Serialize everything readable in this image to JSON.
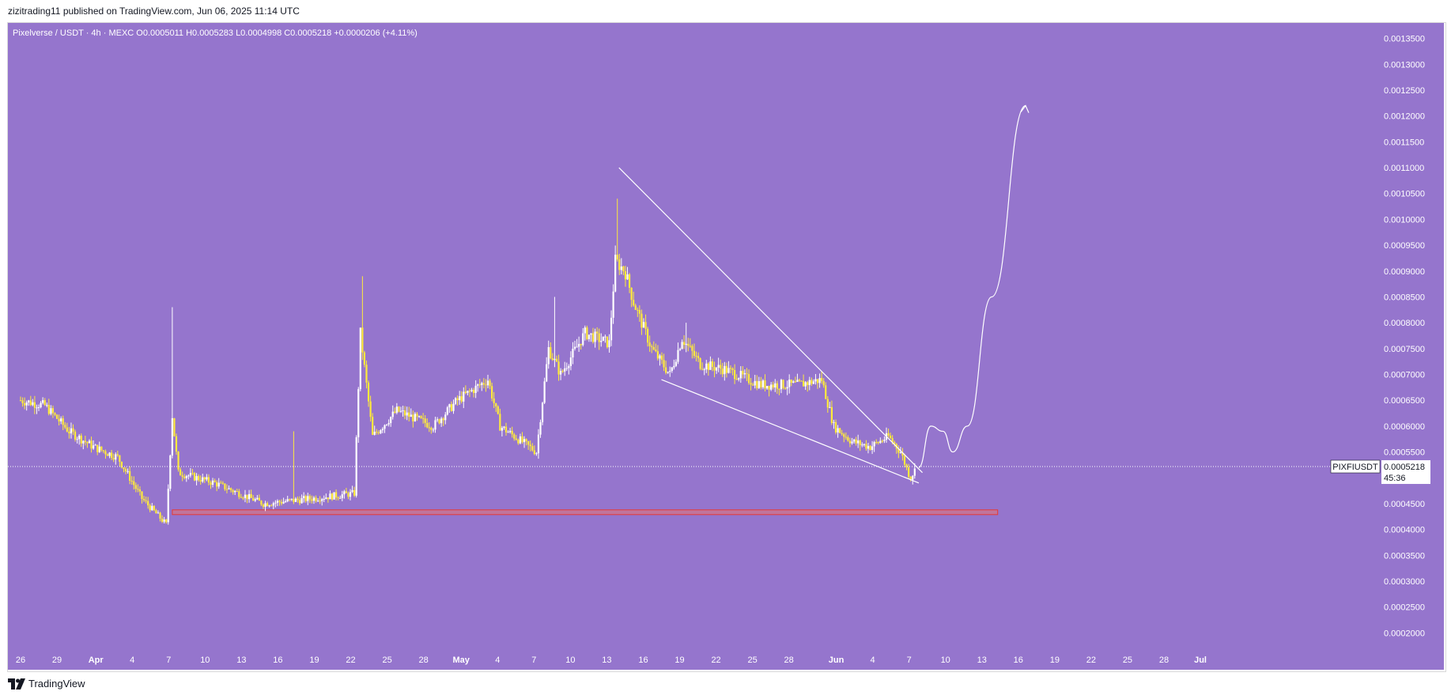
{
  "header": {
    "publish_line": "zizitrading11 published on TradingView.com, Jun 06, 2025 11:14 UTC"
  },
  "footer": {
    "brand": "TradingView"
  },
  "colors": {
    "background": "#9575cd",
    "candle_up": "#ffffff",
    "candle_down": "#ffeb3b",
    "support_zone": "#e57373",
    "annotation": "#ffffff",
    "axis_text": "#ffffff"
  },
  "chart_data": {
    "type": "candlestick",
    "symbol_line": "Pixelverse / USDT · 4h · MEXC  O0.0005011  H0.0005283  L0.0004998  C0.0005218  +0.0000206 (+4.11%)",
    "ticker_label": "PIXFIUSDT",
    "last_price": "0.0005218",
    "countdown": "45:36",
    "ylim": [
      0.00017,
      0.00138
    ],
    "y_ticks": [
      "0.0013500",
      "0.0013000",
      "0.0012500",
      "0.0012000",
      "0.0011500",
      "0.0011000",
      "0.0010500",
      "0.0010000",
      "0.0009500",
      "0.0009000",
      "0.0008500",
      "0.0008000",
      "0.0007500",
      "0.0007000",
      "0.0006500",
      "0.0006000",
      "0.0005500",
      "0.0005000",
      "0.0004500",
      "0.0004000",
      "0.0003500",
      "0.0003000",
      "0.0002500",
      "0.0002000"
    ],
    "x_ticks": [
      "26",
      "29",
      "Apr",
      "4",
      "7",
      "10",
      "13",
      "16",
      "19",
      "22",
      "25",
      "28",
      "May",
      "4",
      "7",
      "10",
      "13",
      "16",
      "19",
      "22",
      "25",
      "28",
      "Jun",
      "4",
      "7",
      "10",
      "13",
      "16",
      "19",
      "22",
      "25",
      "28",
      "Jul"
    ],
    "price_path": [
      {
        "day": 0,
        "price": 0.00065
      },
      {
        "day": 2,
        "price": 0.00064
      },
      {
        "day": 4,
        "price": 0.00059
      },
      {
        "day": 6,
        "price": 0.00056
      },
      {
        "day": 8,
        "price": 0.00054
      },
      {
        "day": 10,
        "price": 0.00046
      },
      {
        "day": 12,
        "price": 0.00041
      },
      {
        "day": 12.5,
        "price": 0.00062
      },
      {
        "day": 13,
        "price": 0.00051
      },
      {
        "day": 16,
        "price": 0.00049
      },
      {
        "day": 20,
        "price": 0.00045
      },
      {
        "day": 24,
        "price": 0.00046
      },
      {
        "day": 27.5,
        "price": 0.00047
      },
      {
        "day": 28,
        "price": 0.00078
      },
      {
        "day": 29,
        "price": 0.00058
      },
      {
        "day": 31,
        "price": 0.00063
      },
      {
        "day": 34,
        "price": 0.0006
      },
      {
        "day": 36,
        "price": 0.00065
      },
      {
        "day": 38.5,
        "price": 0.00069
      },
      {
        "day": 39.5,
        "price": 0.0006
      },
      {
        "day": 42.5,
        "price": 0.00055
      },
      {
        "day": 43.5,
        "price": 0.00075
      },
      {
        "day": 44.5,
        "price": 0.0007
      },
      {
        "day": 46.5,
        "price": 0.00078
      },
      {
        "day": 48.5,
        "price": 0.00076
      },
      {
        "day": 49,
        "price": 0.00092
      },
      {
        "day": 49.8,
        "price": 0.0009
      },
      {
        "day": 50.5,
        "price": 0.00084
      },
      {
        "day": 52,
        "price": 0.00075
      },
      {
        "day": 53.5,
        "price": 0.0007
      },
      {
        "day": 54.5,
        "price": 0.00077
      },
      {
        "day": 56,
        "price": 0.00072
      },
      {
        "day": 58,
        "price": 0.00071
      },
      {
        "day": 61,
        "price": 0.00068
      },
      {
        "day": 64,
        "price": 0.00068
      },
      {
        "day": 66,
        "price": 0.00069
      },
      {
        "day": 67,
        "price": 0.0006
      },
      {
        "day": 68.5,
        "price": 0.00057
      },
      {
        "day": 70,
        "price": 0.00056
      },
      {
        "day": 71.5,
        "price": 0.00058
      },
      {
        "day": 72.5,
        "price": 0.00055
      },
      {
        "day": 73.3,
        "price": 0.0005
      },
      {
        "day": 73.8,
        "price": 0.00052
      }
    ],
    "pattern_lines": [
      {
        "from": {
          "day": 49.3,
          "price": 0.0011
        },
        "to": {
          "day": 74.3,
          "price": 0.00051
        }
      },
      {
        "from": {
          "day": 52.8,
          "price": 0.00069
        },
        "to": {
          "day": 74.0,
          "price": 0.00049
        }
      }
    ],
    "support_zone": {
      "from_day": 12.5,
      "to_day": 80.5,
      "low": 0.00043,
      "high": 0.000438
    },
    "projection_path": [
      {
        "day": 74.0,
        "price": 0.00052
      },
      {
        "day": 75.0,
        "price": 0.0006
      },
      {
        "day": 76.0,
        "price": 0.00059
      },
      {
        "day": 76.8,
        "price": 0.00055
      },
      {
        "day": 78.0,
        "price": 0.0006
      },
      {
        "day": 80.0,
        "price": 0.00085
      },
      {
        "day": 82.8,
        "price": 0.00122
      }
    ]
  }
}
